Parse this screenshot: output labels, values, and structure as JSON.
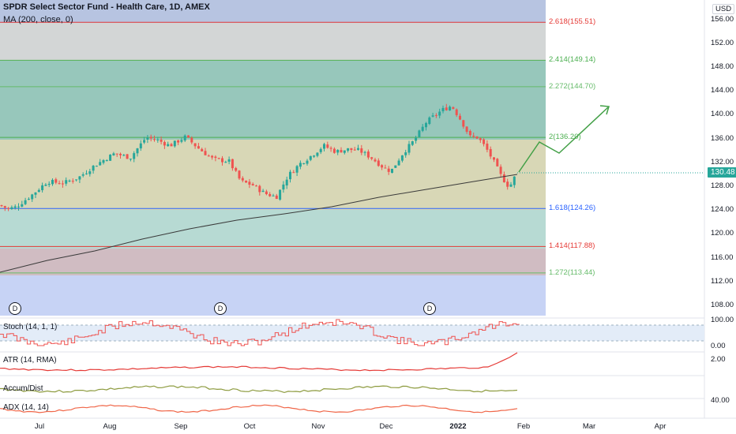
{
  "header": {
    "title": "SPDR Select Sector Fund - Health Care, 1D, AMEX",
    "ma_label": "MA (200, close, 0)"
  },
  "price_axis": {
    "currency": "USD",
    "ticks": [
      "156.00",
      "152.00",
      "148.00",
      "144.00",
      "140.00",
      "136.00",
      "132.00",
      "128.00",
      "124.00",
      "120.00",
      "116.00",
      "112.00",
      "108.00"
    ],
    "last_price": "130.48"
  },
  "fib_levels": [
    {
      "label": "2.618(155.51)",
      "value": 155.51,
      "color": "#e53935"
    },
    {
      "label": "2.414(149.14)",
      "value": 149.14,
      "color": "#4caf50"
    },
    {
      "label": "2.272(144.70)",
      "value": 144.7,
      "color": "#66bb6a"
    },
    {
      "label": "2(136.20)",
      "value": 136.2,
      "color": "#4caf50"
    },
    {
      "label": "1.618(124.26)",
      "value": 124.26,
      "color": "#2962ff"
    },
    {
      "label": "1.414(117.88)",
      "value": 117.88,
      "color": "#e53935"
    },
    {
      "label": "1.272(113.44)",
      "value": 113.44,
      "color": "#66bb6a"
    }
  ],
  "indicators": {
    "stoch": {
      "label": "Stoch (14, 1, 1)",
      "ticks": [
        "100.00",
        "0.00"
      ]
    },
    "atr": {
      "label": "ATR (14, RMA)",
      "ticks": [
        "2.00"
      ]
    },
    "accum": {
      "label": "Accum/Dist"
    },
    "adx": {
      "label": "ADX (14, 14)",
      "ticks": [
        "40.00"
      ]
    }
  },
  "time_axis": [
    "Jul",
    "Aug",
    "Sep",
    "Oct",
    "Nov",
    "Dec",
    "2022",
    "Feb",
    "Mar",
    "Apr"
  ],
  "dividend_marker": "D",
  "colors": {
    "up": "#26a69a",
    "down": "#ef5350",
    "ma": "#3a3a3a",
    "projection": "#43a047"
  }
}
